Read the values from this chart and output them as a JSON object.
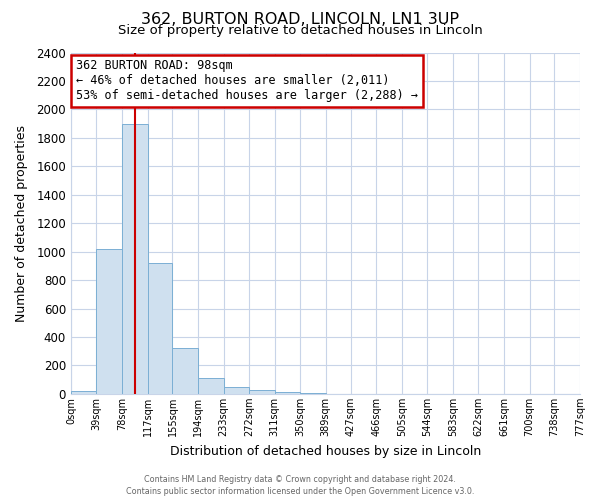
{
  "title": "362, BURTON ROAD, LINCOLN, LN1 3UP",
  "subtitle": "Size of property relative to detached houses in Lincoln",
  "xlabel": "Distribution of detached houses by size in Lincoln",
  "ylabel": "Number of detached properties",
  "bin_edges": [
    0,
    39,
    78,
    117,
    155,
    194,
    233,
    272,
    311,
    350,
    389,
    427,
    466,
    505,
    544,
    583,
    622,
    661,
    700,
    738,
    777
  ],
  "bin_labels": [
    "0sqm",
    "39sqm",
    "78sqm",
    "117sqm",
    "155sqm",
    "194sqm",
    "233sqm",
    "272sqm",
    "311sqm",
    "350sqm",
    "389sqm",
    "427sqm",
    "466sqm",
    "505sqm",
    "544sqm",
    "583sqm",
    "622sqm",
    "661sqm",
    "700sqm",
    "738sqm",
    "777sqm"
  ],
  "bar_heights": [
    20,
    1020,
    1900,
    920,
    320,
    110,
    50,
    30,
    10,
    5,
    0,
    0,
    0,
    0,
    0,
    0,
    0,
    0,
    0,
    0
  ],
  "bar_color": "#cfe0ef",
  "bar_edgecolor": "#7bafd4",
  "vline_x": 98,
  "vline_color": "#cc0000",
  "annotation_title": "362 BURTON ROAD: 98sqm",
  "annotation_line1": "← 46% of detached houses are smaller (2,011)",
  "annotation_line2": "53% of semi-detached houses are larger (2,288) →",
  "annotation_box_facecolor": "#ffffff",
  "annotation_box_edgecolor": "#cc0000",
  "ylim": [
    0,
    2400
  ],
  "yticks": [
    0,
    200,
    400,
    600,
    800,
    1000,
    1200,
    1400,
    1600,
    1800,
    2000,
    2200,
    2400
  ],
  "grid_color": "#c8d4e8",
  "fig_background": "#ffffff",
  "axes_background": "#ffffff",
  "footer_line1": "Contains HM Land Registry data © Crown copyright and database right 2024.",
  "footer_line2": "Contains public sector information licensed under the Open Government Licence v3.0."
}
